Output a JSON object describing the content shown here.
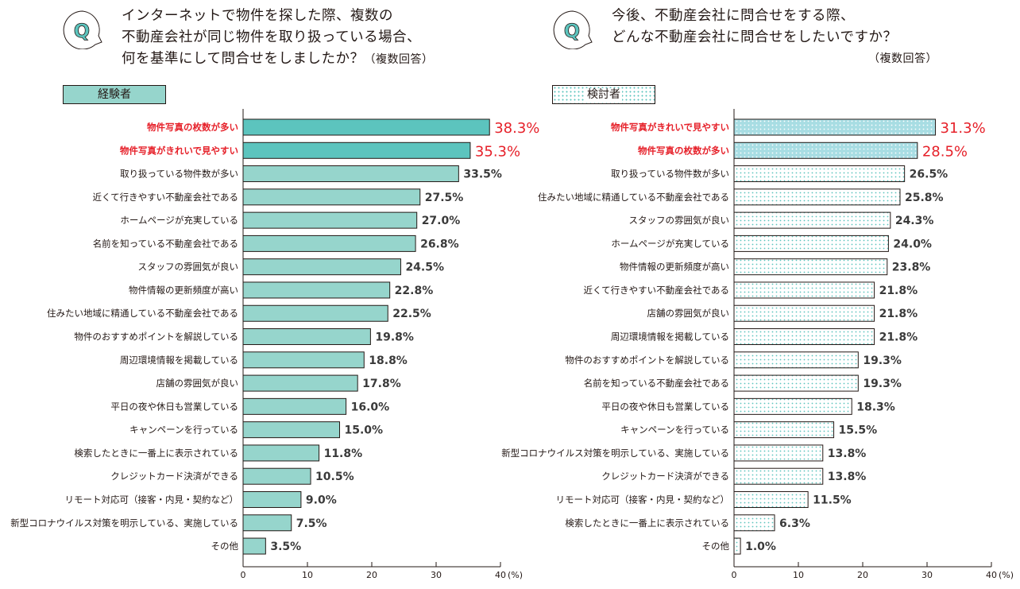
{
  "questions": [
    {
      "lines": [
        "インターネットで物件を探した際、複数の",
        "不動産会社が同じ物件を取り扱っている場合、",
        "何を基準にして問合せをしましたか？"
      ],
      "note": "（複数回答）"
    },
    {
      "lines": [
        "今後、不動産会社に問合せをする際、",
        "どんな不動産会社に問合せをしたいですか？"
      ],
      "note": "（複数回答）"
    }
  ],
  "q_icon": "Q",
  "colors": {
    "highlight": "#e6212a",
    "teal_dark": "#5cc4be",
    "teal_light": "#96d5cc",
    "blue_light": "#a8dde3"
  },
  "chart_data": [
    {
      "type": "bar",
      "orientation": "horizontal",
      "legend": "経験者",
      "xlim": [
        0,
        40
      ],
      "ticks": [
        "0",
        "10",
        "20",
        "30",
        "40"
      ],
      "unit": "(%)",
      "categories": [
        "物件写真の枚数が多い",
        "物件写真がきれいで見やすい",
        "取り扱っている物件数が多い",
        "近くて行きやすい不動産会社である",
        "ホームページが充実している",
        "名前を知っている不動産会社である",
        "スタッフの雰囲気が良い",
        "物件情報の更新頻度が高い",
        "住みたい地域に精通している不動産会社である",
        "物件のおすすめポイントを解説している",
        "周辺環境情報を掲載している",
        "店舗の雰囲気が良い",
        "平日の夜や休日も営業している",
        "キャンペーンを行っている",
        "検索したときに一番上に表示されている",
        "クレジットカード決済ができる",
        "リモート対応可（接客・内見・契約など）",
        "新型コロナウイルス対策を明示している、実施している",
        "その他"
      ],
      "values": [
        38.3,
        35.3,
        33.5,
        27.5,
        27.0,
        26.8,
        24.5,
        22.8,
        22.5,
        19.8,
        18.8,
        17.8,
        16.0,
        15.0,
        11.8,
        10.5,
        9.0,
        7.5,
        3.5
      ],
      "labels": [
        "38.3%",
        "35.3%",
        "33.5%",
        "27.5%",
        "27.0%",
        "26.8%",
        "24.5%",
        "22.8%",
        "22.5%",
        "19.8%",
        "18.8%",
        "17.8%",
        "16.0%",
        "15.0%",
        "11.8%",
        "10.5%",
        "9.0%",
        "7.5%",
        "3.5%"
      ],
      "highlighted": 2
    },
    {
      "type": "bar",
      "orientation": "horizontal",
      "legend": "検討者",
      "xlim": [
        0,
        40
      ],
      "ticks": [
        "0",
        "10",
        "20",
        "30",
        "40"
      ],
      "unit": "(%)",
      "categories": [
        "物件写真がきれいで見やすい",
        "物件写真の枚数が多い",
        "取り扱っている物件数が多い",
        "住みたい地域に精通している不動産会社である",
        "スタッフの雰囲気が良い",
        "ホームページが充実している",
        "物件情報の更新頻度が高い",
        "近くて行きやすい不動産会社である",
        "店舗の雰囲気が良い",
        "周辺環境情報を掲載している",
        "物件のおすすめポイントを解説している",
        "名前を知っている不動産会社である",
        "平日の夜や休日も営業している",
        "キャンペーンを行っている",
        "新型コロナウイルス対策を明示している、実施している",
        "クレジットカード決済ができる",
        "リモート対応可（接客・内見・契約など）",
        "検索したときに一番上に表示されている",
        "その他"
      ],
      "values": [
        31.3,
        28.5,
        26.5,
        25.8,
        24.3,
        24.0,
        23.8,
        21.8,
        21.8,
        21.8,
        19.3,
        19.3,
        18.3,
        15.5,
        13.8,
        13.8,
        11.5,
        6.3,
        1.0
      ],
      "labels": [
        "31.3%",
        "28.5%",
        "26.5%",
        "25.8%",
        "24.3%",
        "24.0%",
        "23.8%",
        "21.8%",
        "21.8%",
        "21.8%",
        "19.3%",
        "19.3%",
        "18.3%",
        "15.5%",
        "13.8%",
        "13.8%",
        "11.5%",
        "6.3%",
        "1.0%"
      ],
      "highlighted": 2
    }
  ]
}
